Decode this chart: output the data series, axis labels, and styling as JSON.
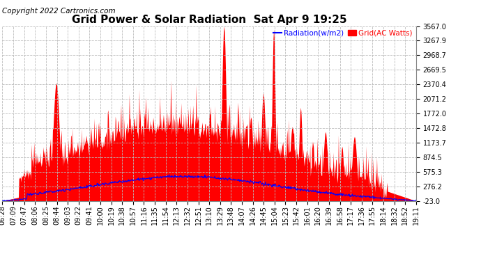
{
  "title": "Grid Power & Solar Radiation  Sat Apr 9 19:25",
  "copyright": "Copyright 2022 Cartronics.com",
  "legend_radiation": "Radiation(w/m2)",
  "legend_grid": "Grid(AC Watts)",
  "yticks": [
    -23.0,
    276.2,
    575.3,
    874.5,
    1173.7,
    1472.8,
    1772.0,
    2071.2,
    2370.4,
    2669.5,
    2968.7,
    3267.9,
    3567.0
  ],
  "ymin": -23.0,
  "ymax": 3567.0,
  "xtick_labels": [
    "06:28",
    "07:09",
    "07:47",
    "08:06",
    "08:25",
    "08:44",
    "09:03",
    "09:22",
    "09:41",
    "10:00",
    "10:19",
    "10:38",
    "10:57",
    "11:16",
    "11:35",
    "11:54",
    "12:13",
    "12:32",
    "12:51",
    "13:10",
    "13:29",
    "13:48",
    "14:07",
    "14:26",
    "14:45",
    "15:04",
    "15:23",
    "15:42",
    "16:01",
    "16:20",
    "16:39",
    "16:58",
    "17:17",
    "17:36",
    "17:55",
    "18:14",
    "18:32",
    "18:52",
    "19:11"
  ],
  "background_color": "#ffffff",
  "grid_color": "#bbbbbb",
  "red_color": "#ff0000",
  "blue_color": "#0000ff",
  "title_fontsize": 11,
  "axis_fontsize": 7,
  "copyright_fontsize": 7.5
}
